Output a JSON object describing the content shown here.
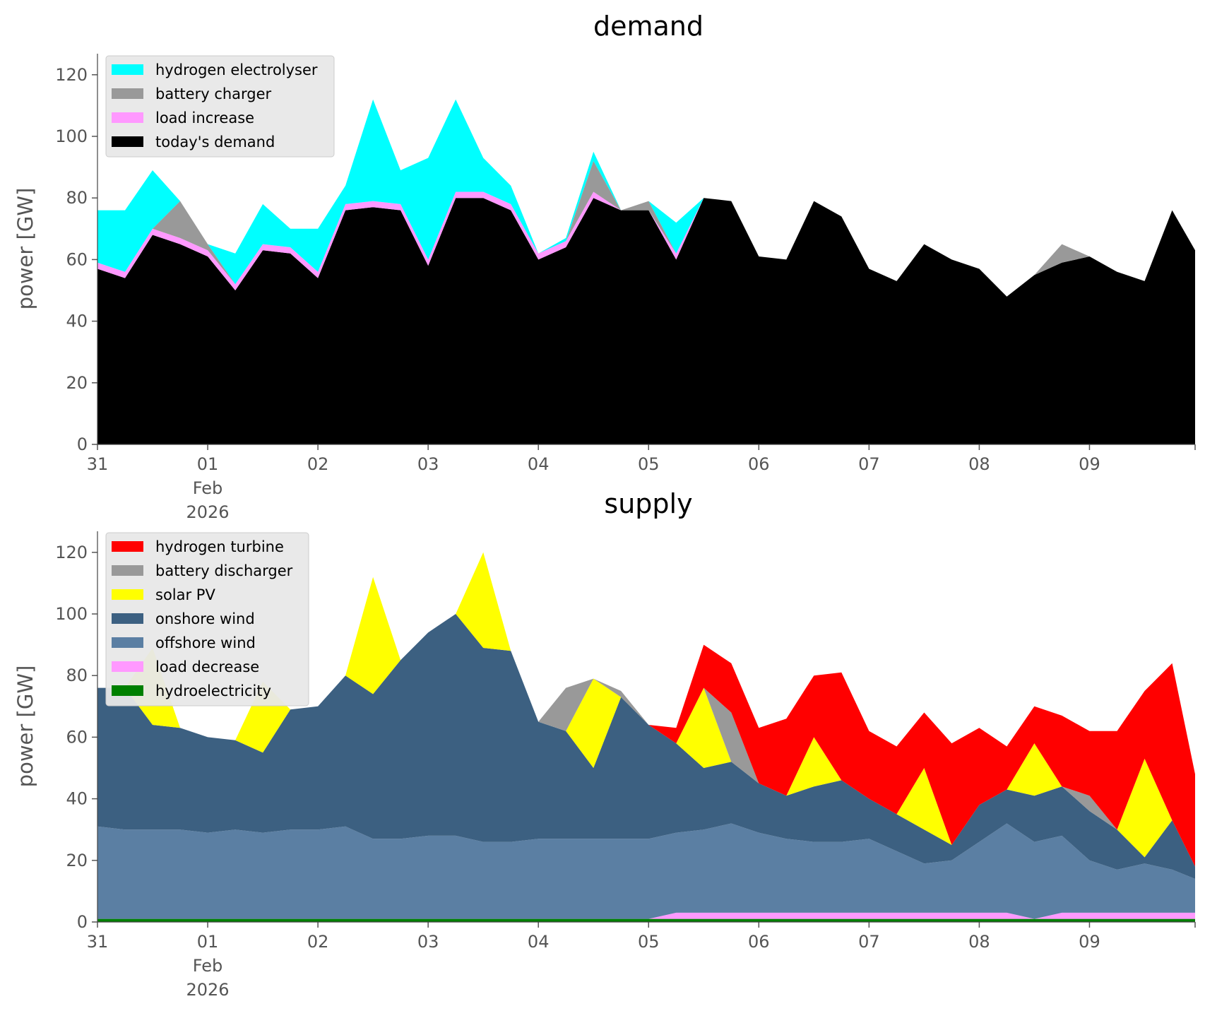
{
  "chart_data": [
    {
      "type": "area",
      "stacked": true,
      "title": "demand",
      "ylabel": "power [GW]",
      "ylim": [
        0,
        125
      ],
      "yticks": [
        "0",
        "20",
        "40",
        "60",
        "80",
        "100",
        "120"
      ],
      "x_start": "2026-01-31",
      "x_end": "2026-02-09 23:00",
      "xticks": [
        {
          "label": "31",
          "sub": []
        },
        {
          "label": "01",
          "sub": [
            "Feb",
            "2026"
          ]
        },
        {
          "label": "02",
          "sub": []
        },
        {
          "label": "03",
          "sub": []
        },
        {
          "label": "04",
          "sub": []
        },
        {
          "label": "05",
          "sub": []
        },
        {
          "label": "06",
          "sub": []
        },
        {
          "label": "07",
          "sub": []
        },
        {
          "label": "08",
          "sub": []
        },
        {
          "label": "09",
          "sub": []
        }
      ],
      "grid": false,
      "legend_position": "top-left",
      "time_step_hours": 6,
      "x": [
        "2026-01-31 00:00",
        "2026-01-31 06:00",
        "2026-01-31 12:00",
        "2026-01-31 18:00",
        "2026-02-01 00:00",
        "2026-02-01 06:00",
        "2026-02-01 12:00",
        "2026-02-01 18:00",
        "2026-02-02 00:00",
        "2026-02-02 06:00",
        "2026-02-02 12:00",
        "2026-02-02 18:00",
        "2026-02-03 00:00",
        "2026-02-03 06:00",
        "2026-02-03 12:00",
        "2026-02-03 18:00",
        "2026-02-04 00:00",
        "2026-02-04 06:00",
        "2026-02-04 12:00",
        "2026-02-04 18:00",
        "2026-02-05 00:00",
        "2026-02-05 06:00",
        "2026-02-05 12:00",
        "2026-02-05 18:00",
        "2026-02-06 00:00",
        "2026-02-06 06:00",
        "2026-02-06 12:00",
        "2026-02-06 18:00",
        "2026-02-07 00:00",
        "2026-02-07 06:00",
        "2026-02-07 12:00",
        "2026-02-07 18:00",
        "2026-02-08 00:00",
        "2026-02-08 06:00",
        "2026-02-08 12:00",
        "2026-02-08 18:00",
        "2026-02-09 00:00",
        "2026-02-09 06:00",
        "2026-02-09 12:00",
        "2026-02-09 18:00",
        "2026-02-09 23:00"
      ],
      "series": [
        {
          "name": "today's demand",
          "color": "#000000",
          "values": [
            57,
            54,
            68,
            65,
            61,
            50,
            63,
            62,
            54,
            76,
            77,
            76,
            58,
            80,
            80,
            76,
            60,
            64,
            80,
            76,
            76,
            60,
            80,
            79,
            61,
            60,
            79,
            74,
            57,
            53,
            65,
            60,
            57,
            48,
            55,
            59,
            61,
            56,
            53,
            76,
            63
          ]
        },
        {
          "name": "load increase",
          "color": "#ff99ff",
          "values": [
            2,
            2,
            2,
            2,
            2,
            2,
            2,
            2,
            2,
            2,
            2,
            2,
            2,
            2,
            2,
            2,
            2,
            2,
            2,
            0,
            0,
            2,
            0,
            0,
            0,
            0,
            0,
            0,
            0,
            0,
            0,
            0,
            0,
            0,
            0,
            0,
            0,
            0,
            0,
            0,
            0
          ]
        },
        {
          "name": "battery charger",
          "color": "#999999",
          "values": [
            0,
            0,
            0,
            12,
            2,
            0,
            0,
            0,
            0,
            0,
            0,
            0,
            0,
            0,
            0,
            0,
            0,
            0,
            10,
            0,
            3,
            0,
            0,
            0,
            0,
            0,
            0,
            0,
            0,
            0,
            0,
            0,
            0,
            0,
            0,
            6,
            0,
            0,
            0,
            0,
            0
          ]
        },
        {
          "name": "hydrogen electrolyser",
          "color": "#00ffff",
          "values": [
            17,
            20,
            19,
            0,
            0,
            10,
            13,
            6,
            14,
            6,
            33,
            11,
            33,
            30,
            11,
            6,
            0,
            1,
            3,
            0,
            0,
            10,
            0,
            0,
            0,
            0,
            0,
            0,
            0,
            0,
            0,
            0,
            0,
            0,
            0,
            0,
            0,
            0,
            0,
            0,
            0
          ]
        }
      ]
    },
    {
      "type": "area",
      "stacked": true,
      "title": "supply",
      "ylabel": "power [GW]",
      "ylim": [
        0,
        125
      ],
      "yticks": [
        "0",
        "20",
        "40",
        "60",
        "80",
        "100",
        "120"
      ],
      "x_start": "2026-01-31",
      "x_end": "2026-02-09 23:00",
      "xticks": [
        {
          "label": "31",
          "sub": []
        },
        {
          "label": "01",
          "sub": [
            "Feb",
            "2026"
          ]
        },
        {
          "label": "02",
          "sub": []
        },
        {
          "label": "03",
          "sub": []
        },
        {
          "label": "04",
          "sub": []
        },
        {
          "label": "05",
          "sub": []
        },
        {
          "label": "06",
          "sub": []
        },
        {
          "label": "07",
          "sub": []
        },
        {
          "label": "08",
          "sub": []
        },
        {
          "label": "09",
          "sub": []
        }
      ],
      "grid": false,
      "legend_position": "top-left",
      "time_step_hours": 6,
      "series": [
        {
          "name": "hydroelectricity",
          "color": "#008000",
          "values": [
            1,
            1,
            1,
            1,
            1,
            1,
            1,
            1,
            1,
            1,
            1,
            1,
            1,
            1,
            1,
            1,
            1,
            1,
            1,
            1,
            1,
            1,
            1,
            1,
            1,
            1,
            1,
            1,
            1,
            1,
            1,
            1,
            1,
            1,
            1,
            1,
            1,
            1,
            1,
            1,
            1
          ]
        },
        {
          "name": "load decrease",
          "color": "#ff99ff",
          "values": [
            0,
            0,
            0,
            0,
            0,
            0,
            0,
            0,
            0,
            0,
            0,
            0,
            0,
            0,
            0,
            0,
            0,
            0,
            0,
            0,
            0,
            2,
            2,
            2,
            2,
            2,
            2,
            2,
            2,
            2,
            2,
            2,
            2,
            2,
            0,
            2,
            2,
            2,
            2,
            2,
            2
          ]
        },
        {
          "name": "offshore wind",
          "color": "#5b7fa3",
          "values": [
            30,
            29,
            29,
            29,
            28,
            29,
            28,
            29,
            29,
            30,
            26,
            26,
            27,
            27,
            25,
            25,
            26,
            26,
            26,
            26,
            26,
            26,
            27,
            29,
            26,
            24,
            23,
            23,
            24,
            20,
            16,
            17,
            23,
            29,
            25,
            25,
            17,
            14,
            16,
            14,
            11
          ]
        },
        {
          "name": "onshore wind",
          "color": "#3c6081",
          "values": [
            45,
            46,
            34,
            33,
            31,
            29,
            26,
            39,
            40,
            49,
            47,
            58,
            66,
            72,
            63,
            62,
            38,
            35,
            23,
            46,
            37,
            29,
            20,
            20,
            16,
            14,
            18,
            20,
            13,
            12,
            11,
            5,
            12,
            11,
            15,
            16,
            16,
            13,
            2,
            16,
            4
          ]
        },
        {
          "name": "solar PV",
          "color": "#ffff00",
          "values": [
            0,
            0,
            25,
            0,
            0,
            0,
            23,
            0,
            0,
            0,
            38,
            0,
            0,
            0,
            31,
            0,
            0,
            0,
            29,
            0,
            0,
            0,
            26,
            0,
            0,
            0,
            16,
            0,
            0,
            0,
            20,
            0,
            0,
            0,
            17,
            0,
            0,
            0,
            32,
            0,
            0
          ]
        },
        {
          "name": "battery discharger",
          "color": "#999999",
          "values": [
            0,
            0,
            0,
            0,
            0,
            0,
            0,
            0,
            0,
            0,
            0,
            0,
            0,
            0,
            0,
            0,
            0,
            14,
            0,
            2,
            0,
            0,
            0,
            16,
            0,
            0,
            0,
            0,
            0,
            0,
            0,
            0,
            0,
            0,
            0,
            0,
            5,
            0,
            0,
            0,
            0
          ]
        },
        {
          "name": "hydrogen turbine",
          "color": "#ff0000",
          "values": [
            0,
            0,
            0,
            0,
            0,
            0,
            0,
            0,
            0,
            0,
            0,
            0,
            0,
            0,
            0,
            0,
            0,
            0,
            0,
            0,
            0,
            5,
            14,
            16,
            18,
            25,
            20,
            35,
            22,
            22,
            18,
            33,
            25,
            14,
            12,
            23,
            21,
            32,
            22,
            51,
            30
          ]
        }
      ]
    }
  ],
  "legends": [
    {
      "entries": [
        {
          "label": "hydrogen electrolyser",
          "color": "#00ffff"
        },
        {
          "label": "battery charger",
          "color": "#999999"
        },
        {
          "label": "load increase",
          "color": "#ff99ff"
        },
        {
          "label": "today's demand",
          "color": "#000000"
        }
      ]
    },
    {
      "entries": [
        {
          "label": "hydrogen turbine",
          "color": "#ff0000"
        },
        {
          "label": "battery discharger",
          "color": "#999999"
        },
        {
          "label": "solar PV",
          "color": "#ffff00"
        },
        {
          "label": "onshore wind",
          "color": "#3c6081"
        },
        {
          "label": "offshore wind",
          "color": "#5b7fa3"
        },
        {
          "label": "load decrease",
          "color": "#ff99ff"
        },
        {
          "label": "hydroelectricity",
          "color": "#008000"
        }
      ]
    }
  ]
}
